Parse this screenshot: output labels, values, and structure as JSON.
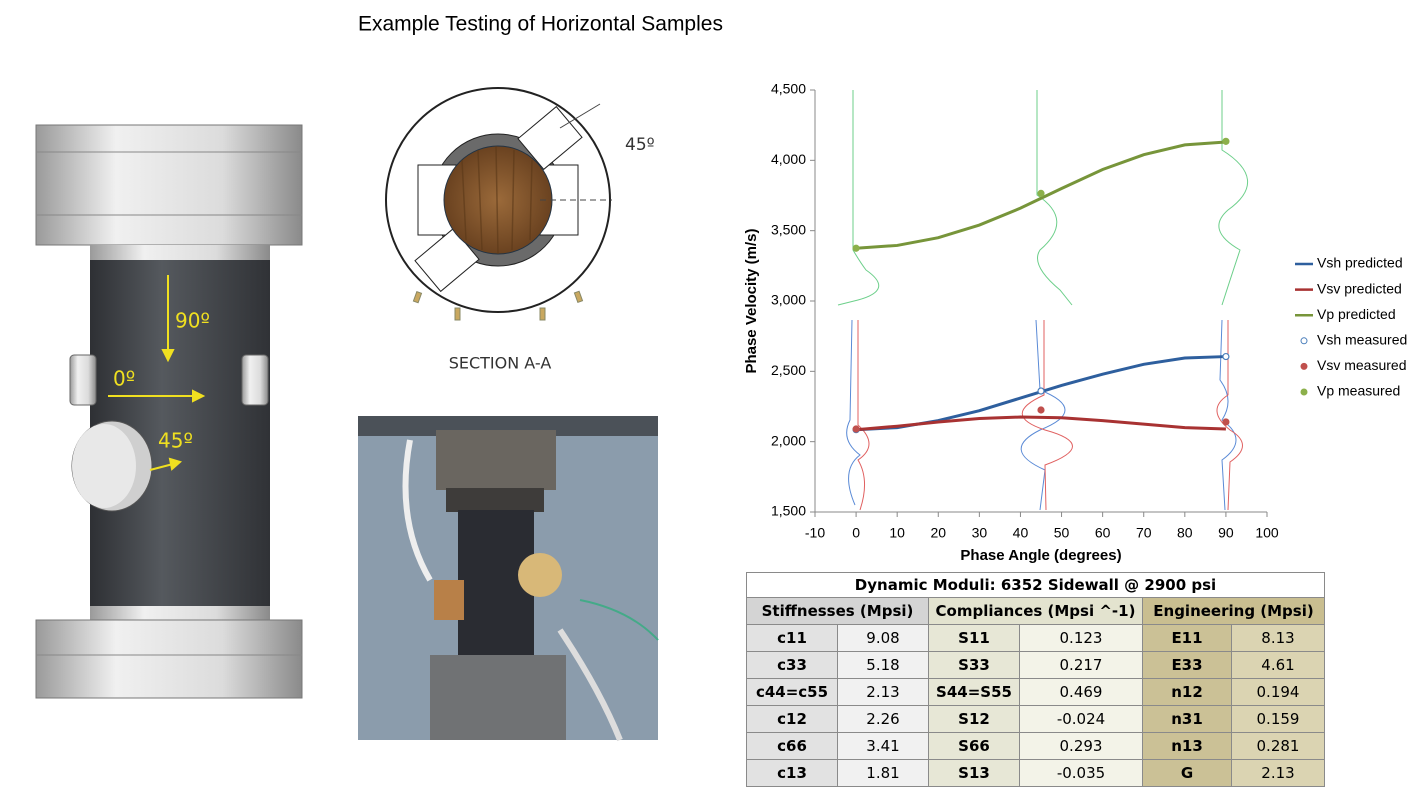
{
  "title": "Example Testing of Horizontal Samples",
  "figure": {
    "labels": [
      "90º",
      "0º",
      "45º"
    ]
  },
  "section": {
    "angle": "45º",
    "caption": "SECTION A-A"
  },
  "chart_data": {
    "type": "line",
    "xlabel": "Phase Angle (degrees)",
    "ylabel": "Phase Velocity (m/s)",
    "xlim": [
      -10,
      100
    ],
    "xticks": [
      -10,
      0,
      10,
      20,
      30,
      40,
      50,
      60,
      70,
      80,
      90,
      100
    ],
    "ylim": [
      1500,
      4500
    ],
    "yticks": [
      {
        "value": 1500,
        "label": "1,500"
      },
      {
        "value": 2000,
        "label": "2,000"
      },
      {
        "value": 2500,
        "label": "2,500"
      },
      {
        "value": 3000,
        "label": "3,000"
      },
      {
        "value": 3500,
        "label": "3,500"
      },
      {
        "value": 4000,
        "label": "4,000"
      },
      {
        "value": 4500,
        "label": "4,500"
      }
    ],
    "legend": "right",
    "series": [
      {
        "name": "Vsh predicted",
        "color": "#2e5f9e",
        "x": [
          0,
          10,
          20,
          30,
          40,
          50,
          60,
          70,
          80,
          90
        ],
        "values": [
          2085,
          2100,
          2150,
          2220,
          2310,
          2400,
          2480,
          2550,
          2595,
          2605
        ]
      },
      {
        "name": "Vsv predicted",
        "color": "#a83232",
        "x": [
          0,
          10,
          20,
          30,
          40,
          50,
          60,
          70,
          80,
          90
        ],
        "values": [
          2085,
          2110,
          2140,
          2165,
          2175,
          2170,
          2150,
          2125,
          2100,
          2090
        ]
      },
      {
        "name": "Vp predicted",
        "color": "#77953a",
        "x": [
          0,
          10,
          20,
          30,
          40,
          50,
          60,
          70,
          80,
          90
        ],
        "values": [
          3375,
          3395,
          3450,
          3540,
          3660,
          3800,
          3935,
          4040,
          4110,
          4130
        ]
      },
      {
        "name": "Vsh measured",
        "color": "#4a7ebb",
        "marker": "open",
        "x": [
          0,
          45,
          90
        ],
        "values": [
          2085,
          2360,
          2605
        ]
      },
      {
        "name": "Vsv measured",
        "color": "#c0504d",
        "marker": "filled",
        "x": [
          0,
          45,
          90
        ],
        "values": [
          2090,
          2225,
          2140
        ]
      },
      {
        "name": "Vp measured",
        "color": "#8cb04b",
        "marker": "filled",
        "x": [
          0,
          45,
          90
        ],
        "values": [
          3375,
          3765,
          4135
        ]
      }
    ]
  },
  "table": {
    "title": "Dynamic Moduli: 6352 Sidewall @ 2900 psi",
    "headers": [
      "Stiffnesses (Mpsi)",
      "Compliances (Mpsi ^-1)",
      "Engineering (Mpsi)"
    ],
    "rows": [
      [
        "c11",
        9.08,
        "S11",
        0.123,
        "E11",
        8.13
      ],
      [
        "c33",
        5.18,
        "S33",
        0.217,
        "E33",
        4.61
      ],
      [
        "c44=c55",
        2.13,
        "S44=S55",
        0.469,
        "n12",
        0.194
      ],
      [
        "c12",
        2.26,
        "S12",
        -0.024,
        "n31",
        0.159
      ],
      [
        "c66",
        3.41,
        "S66",
        0.293,
        "n13",
        0.281
      ],
      [
        "c13",
        1.81,
        "S13",
        -0.035,
        "G",
        2.13
      ]
    ]
  }
}
